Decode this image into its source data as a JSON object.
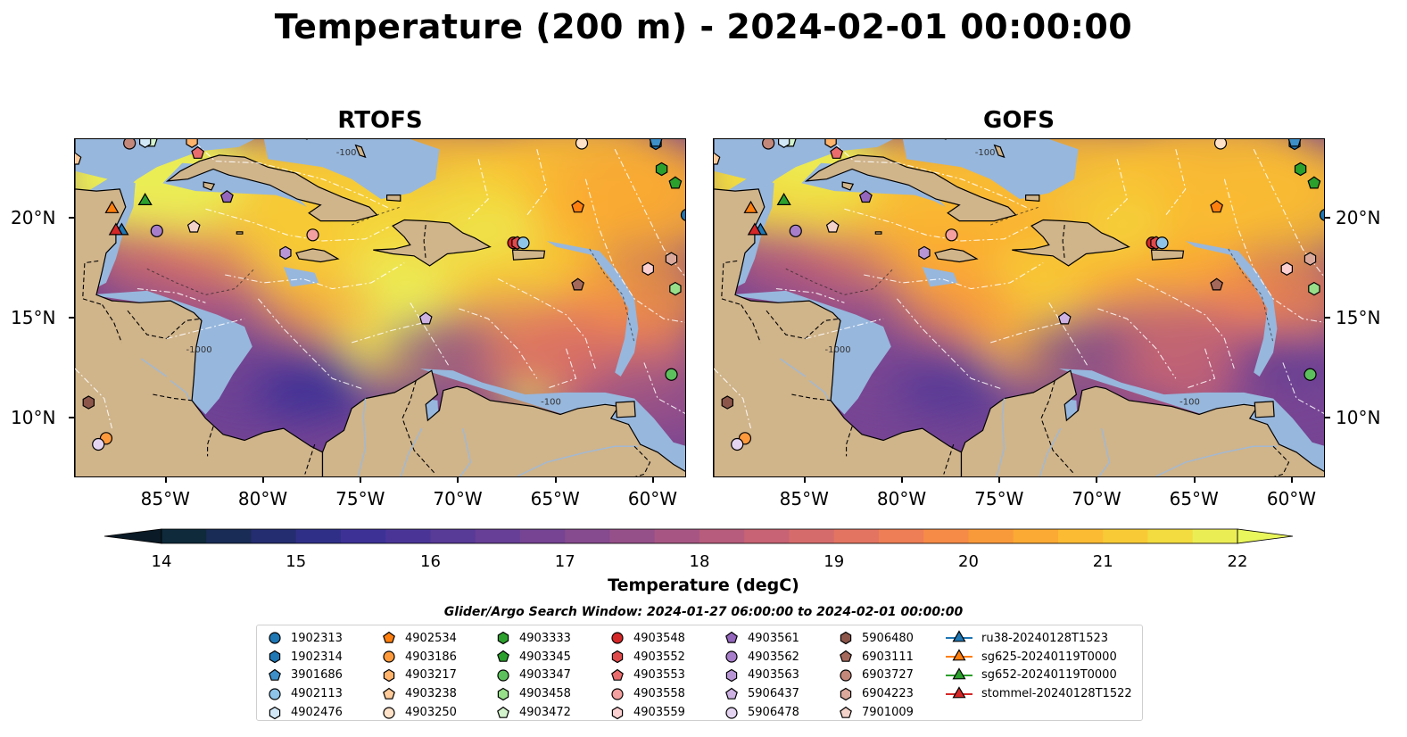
{
  "title": "Temperature (200 m) - 2024-02-01 00:00:00",
  "panels": [
    {
      "title": "RTOFS",
      "variant": "rtofs"
    },
    {
      "title": "GOFS",
      "variant": "gofs"
    }
  ],
  "axes": {
    "lon_ticks": [
      "85°W",
      "80°W",
      "75°W",
      "70°W",
      "65°W",
      "60°W"
    ],
    "lat_ticks": [
      "20°N",
      "15°N",
      "10°N"
    ],
    "lon_range": [
      -89.7,
      -58.3
    ],
    "lat_range": [
      7.0,
      24.0
    ]
  },
  "contour_labels": [
    "-1000",
    "-100"
  ],
  "colorbar": {
    "label": "Temperature (degC)",
    "min": 14,
    "max": 22,
    "ticks": [
      "14",
      "15",
      "16",
      "17",
      "18",
      "19",
      "20",
      "21",
      "22"
    ],
    "colors": [
      "#0e2a3b",
      "#182c55",
      "#242d70",
      "#302f88",
      "#3d3196",
      "#4a3597",
      "#583a97",
      "#673f96",
      "#764493",
      "#864a8e",
      "#965089",
      "#a75683",
      "#b75c7c",
      "#c76374",
      "#d66b6b",
      "#e37462",
      "#ee7e55",
      "#f58b47",
      "#f99a3a",
      "#fbaa33",
      "#fbbb32",
      "#f8cb36",
      "#f2dc3f",
      "#ebed55"
    ],
    "extend_low": "#0a1a26",
    "extend_high": "#e9f65c"
  },
  "map_colors": {
    "land": "#d0b48a",
    "shelf": "#97b7dd",
    "river": "#9fb9d7"
  },
  "search_window": "Glider/Argo Search Window: 2024-01-27 06:00:00 to 2024-02-01 00:00:00",
  "legend": [
    {
      "label": "1902313",
      "shape": "circle",
      "color": "#1f77b4"
    },
    {
      "label": "1902314",
      "shape": "hexagon",
      "color": "#1f77b4"
    },
    {
      "label": "3901686",
      "shape": "pentagon",
      "color": "#3d8fc9"
    },
    {
      "label": "4902113",
      "shape": "circle",
      "color": "#8ec4e8"
    },
    {
      "label": "4902476",
      "shape": "hexagon",
      "color": "#d3e8f6"
    },
    {
      "label": "4902534",
      "shape": "pentagon",
      "color": "#ff7f0e"
    },
    {
      "label": "4903186",
      "shape": "circle",
      "color": "#ff9a3c"
    },
    {
      "label": "4903217",
      "shape": "hexagon",
      "color": "#ffb36b"
    },
    {
      "label": "4903238",
      "shape": "pentagon",
      "color": "#ffcb9a"
    },
    {
      "label": "4903250",
      "shape": "circle",
      "color": "#ffe2c8"
    },
    {
      "label": "4903333",
      "shape": "hexagon",
      "color": "#2ca02c"
    },
    {
      "label": "4903345",
      "shape": "pentagon",
      "color": "#2ca02c"
    },
    {
      "label": "4903347",
      "shape": "circle",
      "color": "#5cc15c"
    },
    {
      "label": "4903458",
      "shape": "hexagon",
      "color": "#98df8a"
    },
    {
      "label": "4903472",
      "shape": "pentagon",
      "color": "#d3f3cc"
    },
    {
      "label": "4903548",
      "shape": "circle",
      "color": "#d62728"
    },
    {
      "label": "4903552",
      "shape": "hexagon",
      "color": "#e04a4b"
    },
    {
      "label": "4903553",
      "shape": "pentagon",
      "color": "#ea6c6d"
    },
    {
      "label": "4903558",
      "shape": "circle",
      "color": "#f4a0a0"
    },
    {
      "label": "4903559",
      "shape": "hexagon",
      "color": "#fcd0d0"
    },
    {
      "label": "4903561",
      "shape": "pentagon",
      "color": "#9467bd"
    },
    {
      "label": "4903562",
      "shape": "circle",
      "color": "#a77ec9"
    },
    {
      "label": "4903563",
      "shape": "hexagon",
      "color": "#b896d6"
    },
    {
      "label": "5906437",
      "shape": "pentagon",
      "color": "#cdb2e3"
    },
    {
      "label": "5906478",
      "shape": "circle",
      "color": "#e4d4f1"
    },
    {
      "label": "5906480",
      "shape": "hexagon",
      "color": "#8c564b"
    },
    {
      "label": "6903111",
      "shape": "pentagon",
      "color": "#a5695c"
    },
    {
      "label": "6903727",
      "shape": "circle",
      "color": "#c4887a"
    },
    {
      "label": "6904223",
      "shape": "hexagon",
      "color": "#dba89c"
    },
    {
      "label": "7901009",
      "shape": "pentagon",
      "color": "#f3d2c9"
    },
    {
      "label": "ru38-20240128T1523",
      "shape": "triangle",
      "color": "#1f77b4"
    },
    {
      "label": "sg625-20240119T0000",
      "shape": "triangle",
      "color": "#ff7f0e"
    },
    {
      "label": "sg652-20240119T0000",
      "shape": "triangle",
      "color": "#2ca02c"
    },
    {
      "label": "stommel-20240128T1522",
      "shape": "triangle",
      "color": "#d62728"
    }
  ],
  "markers": [
    {
      "id": "1902313",
      "lon": -58.3,
      "lat": 20.2
    },
    {
      "id": "1902314",
      "lon": -59.9,
      "lat": 23.8
    },
    {
      "id": "3901686",
      "lon": -59.9,
      "lat": 23.9
    },
    {
      "id": "4902534",
      "lon": -63.9,
      "lat": 20.6
    },
    {
      "id": "4903186",
      "lon": -88.1,
      "lat": 9.0
    },
    {
      "id": "4903217",
      "lon": -83.7,
      "lat": 23.9
    },
    {
      "id": "4903238",
      "lon": -89.7,
      "lat": 23.0
    },
    {
      "id": "4903250",
      "lon": -63.7,
      "lat": 23.8
    },
    {
      "id": "4903333",
      "lon": -59.6,
      "lat": 22.5
    },
    {
      "id": "4903345",
      "lon": -58.9,
      "lat": 21.8
    },
    {
      "id": "4903347",
      "lon": -59.1,
      "lat": 12.2
    },
    {
      "id": "4903458",
      "lon": -58.9,
      "lat": 16.5
    },
    {
      "id": "4903548",
      "lon": -67.2,
      "lat": 18.8
    },
    {
      "id": "4903552",
      "lon": -67.0,
      "lat": 18.8
    },
    {
      "id": "4903553",
      "lon": -83.4,
      "lat": 23.3
    },
    {
      "id": "4903558",
      "lon": -77.5,
      "lat": 19.2
    },
    {
      "id": "4903559",
      "lon": -60.3,
      "lat": 17.5
    },
    {
      "id": "4903561",
      "lon": -81.9,
      "lat": 21.1
    },
    {
      "id": "4903562",
      "lon": -85.5,
      "lat": 19.4
    },
    {
      "id": "4903563",
      "lon": -78.9,
      "lat": 18.3
    },
    {
      "id": "5906437",
      "lon": -71.7,
      "lat": 15.0
    },
    {
      "id": "5906478",
      "lon": -88.5,
      "lat": 8.7
    },
    {
      "id": "5906480",
      "lon": -89.0,
      "lat": 10.8
    },
    {
      "id": "6903111",
      "lon": -63.9,
      "lat": 16.7
    },
    {
      "id": "6904223",
      "lon": -59.1,
      "lat": 18.0
    },
    {
      "id": "7901009",
      "lon": -83.6,
      "lat": 19.6
    },
    {
      "id": "4903472",
      "lon": -85.8,
      "lat": 23.9
    },
    {
      "id": "4902113",
      "lon": -66.7,
      "lat": 18.8
    },
    {
      "id": "4902476",
      "lon": -86.1,
      "lat": 23.9
    },
    {
      "id": "6903727",
      "lon": -86.9,
      "lat": 23.8
    },
    {
      "id": "ru38-20240128T1523",
      "lon": -87.3,
      "lat": 19.4
    },
    {
      "id": "sg625-20240119T0000",
      "lon": -87.8,
      "lat": 20.5
    },
    {
      "id": "sg652-20240119T0000",
      "lon": -86.1,
      "lat": 20.9
    },
    {
      "id": "stommel-20240128T1522",
      "lon": -87.6,
      "lat": 19.4
    }
  ]
}
